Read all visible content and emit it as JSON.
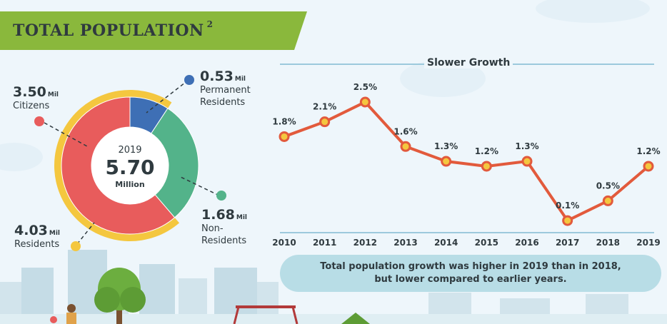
{
  "header": {
    "title": "TOTAL POPULATION",
    "superscript": "2"
  },
  "donut": {
    "year": "2019",
    "total_value": "5.70",
    "total_unit": "Million",
    "segments": [
      {
        "name": "Citizens",
        "value": 3.5,
        "color": "#e85c5c"
      },
      {
        "name": "Permanent Residents",
        "value": 0.53,
        "color": "#3e6fb5"
      },
      {
        "name": "Non-Residents",
        "value": 1.68,
        "color": "#53b38a"
      }
    ],
    "outer_ring": {
      "name": "Residents",
      "value": 4.03,
      "color": "#f4c73f"
    },
    "labels": {
      "citizens": {
        "value": "3.50",
        "unit": "Mil",
        "text": "Citizens"
      },
      "pr": {
        "value": "0.53",
        "unit": "Mil",
        "text_line1": "Permanent",
        "text_line2": "Residents"
      },
      "nr": {
        "value": "1.68",
        "unit": "Mil",
        "text_line1": "Non-",
        "text_line2": "Residents"
      },
      "residents": {
        "value": "4.03",
        "unit": "Mil",
        "text": "Residents"
      }
    }
  },
  "chart_data": {
    "type": "line",
    "title": "Slower Growth",
    "x": [
      "2010",
      "2011",
      "2012",
      "2013",
      "2014",
      "2015",
      "2016",
      "2017",
      "2018",
      "2019"
    ],
    "values": [
      1.8,
      2.1,
      2.5,
      1.6,
      1.3,
      1.2,
      1.3,
      0.1,
      0.5,
      1.2
    ],
    "data_labels": [
      "1.8%",
      "2.1%",
      "2.5%",
      "1.6%",
      "1.3%",
      "1.2%",
      "1.3%",
      "0.1%",
      "0.5%",
      "1.2%"
    ],
    "line_color": "#e25a3c",
    "marker_color": "#f4c73f",
    "ylim": [
      0,
      2.5
    ]
  },
  "note": {
    "line1": "Total population growth was higher in 2019 than in 2018,",
    "line2": "but lower compared to earlier years."
  }
}
